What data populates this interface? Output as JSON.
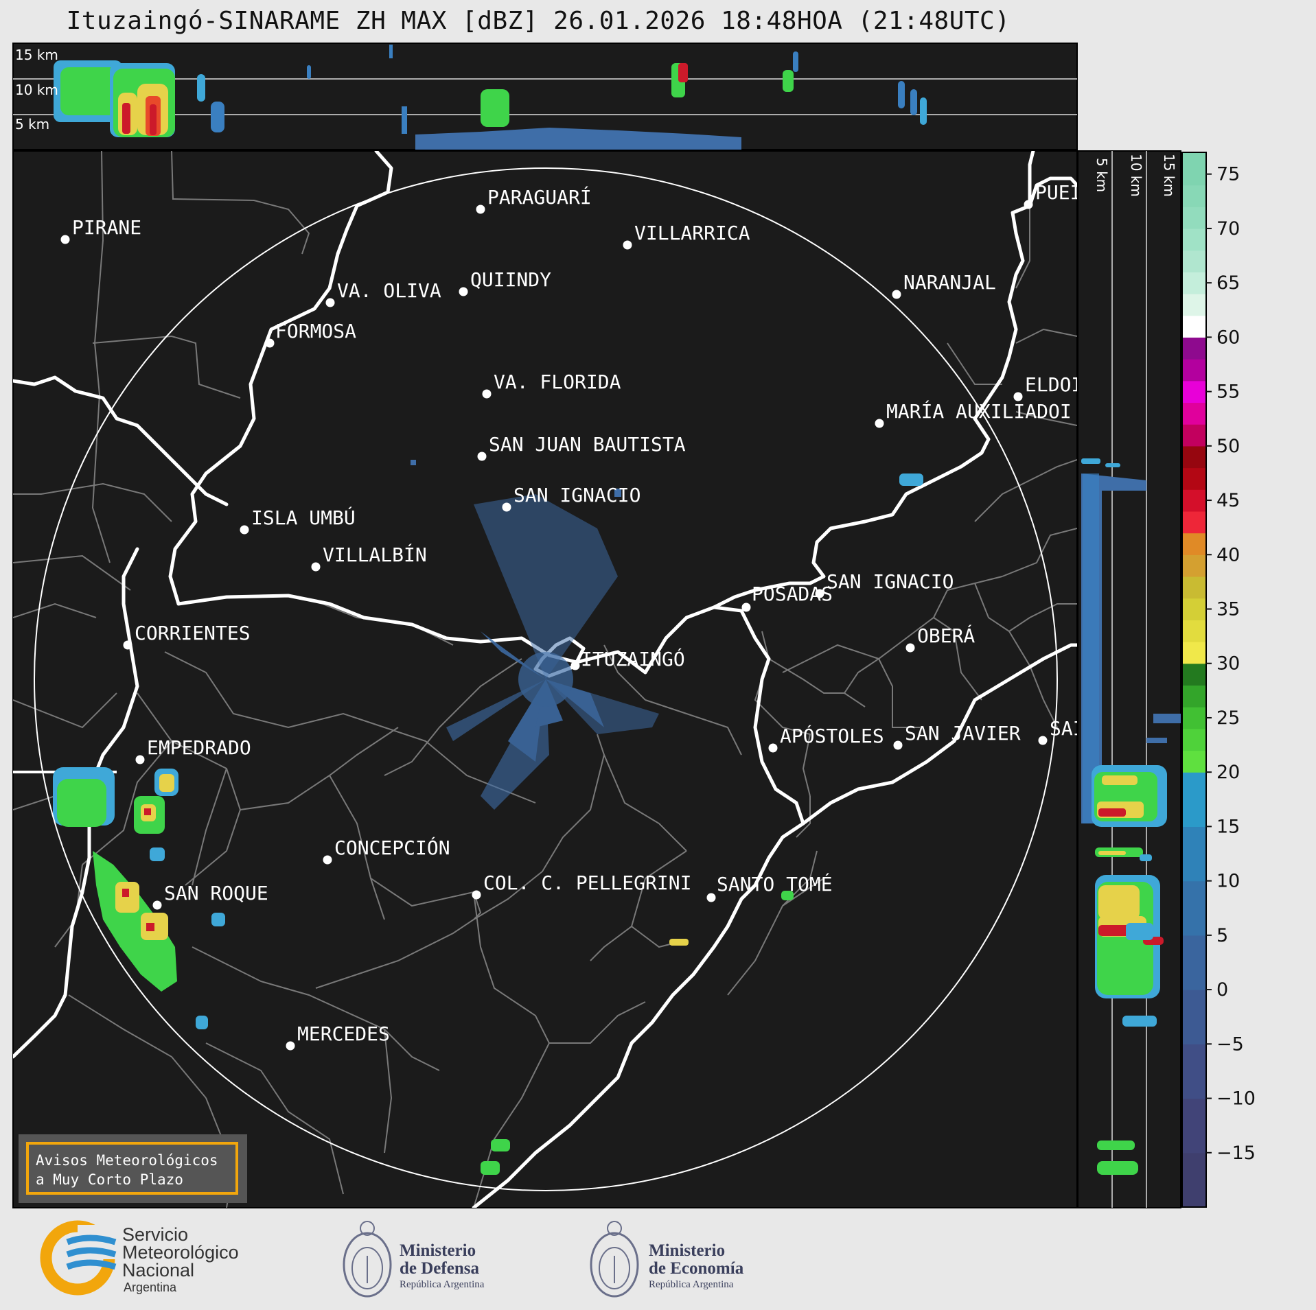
{
  "title": "Ituzaingó-SINARAME ZH MAX [dBZ] 26.01.2026 18:48HOA (21:48UTC)",
  "top_panel": {
    "heights": [
      "15 km",
      "10 km",
      "5 km"
    ]
  },
  "side_panel": {
    "heights": [
      "5 km",
      "10 km",
      "15 km"
    ]
  },
  "colorbar": {
    "ticks": [
      "75",
      "70",
      "65",
      "60",
      "55",
      "50",
      "45",
      "40",
      "35",
      "30",
      "25",
      "20",
      "15",
      "10",
      "5",
      "0",
      "−5",
      "−10",
      "−15"
    ],
    "min": -20,
    "max": 77
  },
  "cities": [
    {
      "name": "PIRANE"
    },
    {
      "name": "PARAGUARÍ"
    },
    {
      "name": "VILLARRICA"
    },
    {
      "name": "VA. OLIVA"
    },
    {
      "name": "QUIINDY"
    },
    {
      "name": "NARANJAL"
    },
    {
      "name": "FORMOSA"
    },
    {
      "name": "PUEI"
    },
    {
      "name": "VA. FLORIDA"
    },
    {
      "name": "ELDOI"
    },
    {
      "name": "MARÍA AUXILIADOI"
    },
    {
      "name": "SAN JUAN BAUTISTA"
    },
    {
      "name": "SAN IGNACIO"
    },
    {
      "name": "ISLA UMBÚ"
    },
    {
      "name": "VILLALBÍN"
    },
    {
      "name": "SAN IGNACIO"
    },
    {
      "name": "POSADAS"
    },
    {
      "name": "CORRIENTES"
    },
    {
      "name": "ITUZAINGÓ"
    },
    {
      "name": "OBERÁ"
    },
    {
      "name": "EMPEDRADO"
    },
    {
      "name": "APÓSTOLES"
    },
    {
      "name": "SAN JAVIER"
    },
    {
      "name": "SAI"
    },
    {
      "name": "CONCEPCIÓN"
    },
    {
      "name": "COL. C. PELLEGRINI"
    },
    {
      "name": "SANTO TOMÉ"
    },
    {
      "name": "SAN ROQUE"
    },
    {
      "name": "MERCEDES"
    }
  ],
  "notice": {
    "line1": "Avisos Meteorológicos",
    "line2": "a Muy Corto Plazo"
  },
  "logos": {
    "smn": {
      "line1": "Servicio",
      "line2": "Meteorológico",
      "line3": "Nacional",
      "line4": "Argentina"
    },
    "defensa": {
      "line1": "Ministerio",
      "line2": "de Defensa",
      "line3": "República Argentina"
    },
    "economia": {
      "line1": "Ministerio",
      "line2": "de Economía",
      "line3": "República Argentina"
    }
  },
  "colors": {
    "map_bg": "#1b1b1b",
    "accent": "#f2a60c",
    "border": "#8a8a8a"
  }
}
